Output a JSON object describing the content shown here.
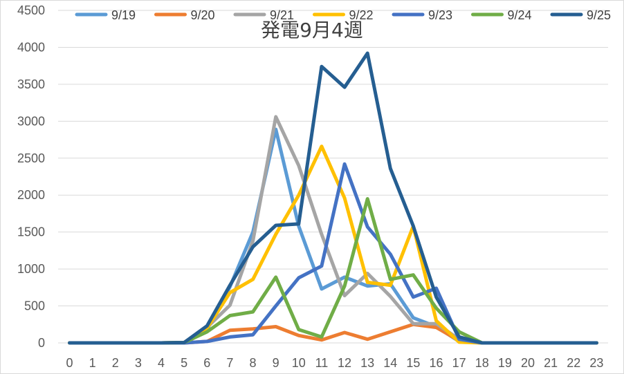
{
  "chart_data": {
    "type": "line",
    "title": "発電9月4週",
    "xlabel": "",
    "ylabel": "",
    "ylim": [
      0,
      4500
    ],
    "yticks": [
      0,
      500,
      1000,
      1500,
      2000,
      2500,
      3000,
      3500,
      4000,
      4500
    ],
    "grid": true,
    "legend_position": "top",
    "x": [
      0,
      1,
      2,
      3,
      4,
      5,
      6,
      7,
      8,
      9,
      10,
      11,
      12,
      13,
      14,
      15,
      16,
      17,
      18,
      19,
      20,
      21,
      22,
      23
    ],
    "x_labels": [
      "0",
      "1",
      "2",
      "3",
      "4",
      "5",
      "6",
      "7",
      "8",
      "9",
      "10",
      "11",
      "12",
      "13",
      "14",
      "15",
      "16",
      "17",
      "18",
      "19",
      "20",
      "21",
      "22",
      "23"
    ],
    "series": [
      {
        "name": "9/19",
        "color": "#5B9BD5",
        "values": [
          0,
          0,
          0,
          0,
          0,
          5,
          180,
          760,
          1500,
          2890,
          1580,
          730,
          890,
          770,
          800,
          340,
          220,
          20,
          0,
          0,
          0,
          0,
          0,
          0
        ]
      },
      {
        "name": "9/20",
        "color": "#ED7D31",
        "values": [
          0,
          0,
          0,
          0,
          0,
          0,
          20,
          170,
          190,
          220,
          100,
          40,
          140,
          50,
          150,
          250,
          210,
          30,
          0,
          0,
          0,
          0,
          0,
          0
        ]
      },
      {
        "name": "9/21",
        "color": "#A5A5A5",
        "values": [
          0,
          0,
          0,
          0,
          0,
          5,
          210,
          510,
          1380,
          3060,
          2400,
          1470,
          640,
          940,
          630,
          260,
          260,
          50,
          0,
          0,
          0,
          0,
          0,
          0
        ]
      },
      {
        "name": "9/22",
        "color": "#FFC000",
        "values": [
          0,
          0,
          0,
          0,
          0,
          5,
          200,
          680,
          860,
          1470,
          2000,
          2660,
          1960,
          820,
          780,
          1580,
          300,
          10,
          0,
          0,
          0,
          0,
          0,
          0
        ]
      },
      {
        "name": "9/23",
        "color": "#4472C4",
        "values": [
          0,
          0,
          0,
          0,
          0,
          0,
          20,
          80,
          110,
          500,
          880,
          1040,
          2420,
          1570,
          1200,
          620,
          740,
          50,
          0,
          0,
          0,
          0,
          0,
          0
        ]
      },
      {
        "name": "9/24",
        "color": "#70AD47",
        "values": [
          0,
          0,
          0,
          0,
          0,
          5,
          150,
          370,
          420,
          890,
          180,
          80,
          770,
          1950,
          860,
          920,
          470,
          150,
          0,
          0,
          0,
          0,
          0,
          0
        ]
      },
      {
        "name": "9/25",
        "color": "#255E91",
        "values": [
          0,
          0,
          0,
          0,
          0,
          5,
          230,
          780,
          1300,
          1590,
          1610,
          3740,
          3460,
          3920,
          2360,
          1580,
          620,
          80,
          0,
          0,
          0,
          0,
          0,
          0
        ]
      }
    ]
  }
}
